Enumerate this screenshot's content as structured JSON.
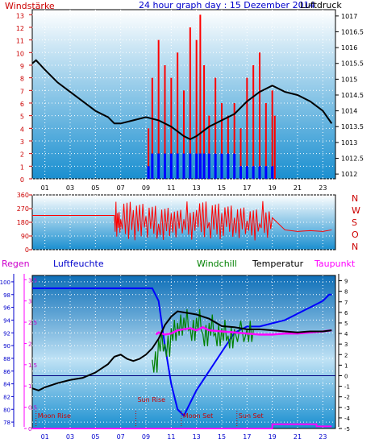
{
  "top": {
    "left_label": "Windstärke",
    "title": "24 hour graph day : 15 Dezember 2014",
    "right_label": "Luftdruck",
    "left_ticks": [
      "0",
      "1",
      "2",
      "3",
      "4",
      "5",
      "6",
      "7",
      "8",
      "9",
      "10",
      "11",
      "12",
      "13"
    ],
    "right_ticks": [
      "1012",
      "1012.5",
      "1013",
      "1013.5",
      "1014",
      "1014.5",
      "1015",
      "1015.5",
      "1016",
      "1016.5",
      "1017"
    ]
  },
  "x_ticks": [
    "01",
    "03",
    "05",
    "07",
    "09",
    "11",
    "13",
    "15",
    "17",
    "19",
    "21",
    "23"
  ],
  "direction": {
    "left_ticks": [
      "360",
      "270",
      "180",
      "90",
      "0"
    ],
    "right_letters": [
      "N",
      "W",
      "S",
      "O",
      "N"
    ]
  },
  "bottom": {
    "labels": {
      "rain": "Regen",
      "humidity": "Luftfeuchte",
      "windchill": "Windchill",
      "temperature": "Temperatur",
      "dewpoint": "Taupunkt"
    },
    "humidity_ticks": [
      "78",
      "80",
      "82",
      "84",
      "86",
      "88",
      "90",
      "92",
      "94",
      "96",
      "98",
      "100"
    ],
    "rain_ticks": [
      "0",
      "0.5",
      "1",
      "1.5",
      "2",
      "2.5",
      "3",
      "3.5"
    ],
    "temp_ticks": [
      "-5",
      "-4",
      "-3",
      "-2",
      "-1",
      "0",
      "1",
      "2",
      "3",
      "4",
      "5",
      "6",
      "7",
      "8",
      "9"
    ],
    "events": [
      {
        "label": "Moon Rise",
        "hour": 0.3
      },
      {
        "label": "Sun Rise",
        "hour": 8.2
      },
      {
        "label": "Moon Set",
        "hour": 11.8
      },
      {
        "label": "Sun Set",
        "hour": 16.2
      }
    ]
  },
  "colors": {
    "wind_axis": "#cc0000",
    "pressure": "#000000",
    "wind_gust": "#ff0000",
    "wind_avg": "#0000ff",
    "direction": "#ff0000",
    "humidity": "#0000ff",
    "rain": "#ff00ff",
    "temperature": "#000000",
    "windchill": "#008000",
    "dewpoint": "#ff00ff",
    "bg_top": "#ffffff",
    "bg_bottom": "#1a8fd0"
  },
  "chart_data": [
    {
      "type": "line",
      "title": "24 hour graph day : 15 Dezember 2014",
      "ylabel": "Windstärke",
      "y2label": "Luftdruck",
      "xlim": [
        0,
        24
      ],
      "ylim": [
        0,
        13
      ],
      "y2lim": [
        1012,
        1017
      ],
      "series": [
        {
          "name": "Luftdruck",
          "axis": "right",
          "x": [
            0,
            0.3,
            1,
            2,
            3,
            4,
            5,
            6,
            6.5,
            7,
            8,
            9,
            10,
            11,
            12,
            12.5,
            13,
            14,
            15,
            16,
            17,
            18,
            19,
            19.5,
            20,
            21,
            22,
            23,
            23.7
          ],
          "values": [
            1015.5,
            1015.6,
            1015.3,
            1014.9,
            1014.6,
            1014.3,
            1014.0,
            1013.8,
            1013.6,
            1013.6,
            1013.7,
            1013.8,
            1013.7,
            1013.5,
            1013.2,
            1013.1,
            1013.2,
            1013.5,
            1013.7,
            1013.9,
            1014.3,
            1014.6,
            1014.8,
            1014.7,
            1014.6,
            1014.5,
            1014.3,
            1014.0,
            1013.6
          ]
        },
        {
          "name": "Windböen",
          "axis": "left",
          "x": [
            9.2,
            9.5,
            10,
            10.5,
            11,
            11.5,
            12,
            12.5,
            13,
            13.3,
            13.6,
            14,
            14.5,
            15,
            15.5,
            16,
            16.5,
            17,
            17.5,
            18,
            18.5,
            19,
            19.2
          ],
          "values": [
            4,
            8,
            11,
            9,
            8,
            10,
            7,
            12,
            11,
            13,
            9,
            5,
            8,
            6,
            5,
            6,
            4,
            8,
            9,
            10,
            6,
            7,
            5
          ]
        },
        {
          "name": "Windmittel",
          "axis": "left",
          "x": [
            9.2,
            9.5,
            10,
            10.5,
            11,
            11.5,
            12,
            12.5,
            13,
            13.3,
            13.6,
            14,
            14.5,
            15,
            15.5,
            16,
            16.5,
            17,
            17.5,
            18,
            18.5,
            19,
            19.2
          ],
          "values": [
            1,
            2,
            2,
            2,
            2,
            2,
            2,
            2,
            2,
            2,
            2,
            2,
            2,
            2,
            2,
            2,
            1,
            1,
            1,
            1,
            1,
            1,
            0
          ]
        }
      ]
    },
    {
      "type": "line",
      "ylabel": "Windrichtung",
      "xlim": [
        0,
        24
      ],
      "ylim": [
        0,
        360
      ],
      "series": [
        {
          "name": "Windrichtung",
          "x": [
            0,
            1,
            2,
            3,
            4,
            5,
            6,
            6.5,
            7,
            8,
            9,
            10,
            11,
            12,
            13,
            14,
            15,
            16,
            17,
            18,
            19,
            20,
            21,
            22,
            23,
            23.7
          ],
          "values": [
            225,
            225,
            225,
            225,
            225,
            225,
            225,
            225,
            200,
            260,
            220,
            170,
            240,
            200,
            260,
            180,
            240,
            210,
            190,
            170,
            210,
            130,
            120,
            125,
            120,
            130
          ]
        }
      ]
    },
    {
      "type": "line",
      "ylabel": "Luftfeuchte",
      "xlim": [
        0,
        24
      ],
      "ylim": [
        77,
        101
      ],
      "series": [
        {
          "name": "Luftfeuchte",
          "axis": "humidity",
          "x": [
            0,
            9.5,
            10,
            10.5,
            11,
            11.5,
            12,
            12.5,
            13,
            14,
            15,
            16,
            17,
            18,
            19,
            20,
            21,
            22,
            22.5,
            23,
            23.5,
            23.7
          ],
          "values": [
            99,
            99,
            97,
            90,
            84,
            80,
            79,
            81,
            83,
            86,
            89,
            92,
            93,
            93,
            93.5,
            94,
            95,
            96,
            96.5,
            97,
            98,
            98
          ]
        },
        {
          "name": "Temperatur",
          "axis": "temp",
          "x": [
            0,
            0.5,
            1,
            2,
            3,
            4,
            5,
            6,
            6.5,
            7,
            7.5,
            8,
            8.5,
            9,
            9.5,
            10,
            10.5,
            11,
            11.5,
            12,
            12.5,
            13,
            14,
            15,
            16,
            17,
            18,
            19,
            20,
            21,
            22,
            23,
            23.7
          ],
          "values": [
            -1.2,
            -1.4,
            -1.1,
            -0.7,
            -0.4,
            -0.2,
            0.3,
            1.1,
            1.8,
            2.0,
            1.6,
            1.4,
            1.6,
            2.0,
            2.6,
            3.5,
            4.8,
            5.6,
            6.1,
            6.0,
            5.9,
            5.8,
            5.4,
            4.7,
            4.6,
            4.4,
            4.4,
            4.3,
            4.2,
            4.1,
            4.2,
            4.2,
            4.3
          ]
        },
        {
          "name": "Windchill",
          "axis": "temp",
          "x": [
            9.5,
            10,
            10.5,
            11,
            11.5,
            12,
            12.5,
            13,
            13.5,
            14,
            14.5,
            15,
            15.5,
            16,
            17,
            17.5
          ],
          "values": [
            1.5,
            3.5,
            3.0,
            4.5,
            5.0,
            5.5,
            4.5,
            5.5,
            4.0,
            5.0,
            4.0,
            4.5,
            3.8,
            4.4,
            4.4,
            4.3
          ]
        },
        {
          "name": "Taupunkt",
          "axis": "temp",
          "x": [
            9.8,
            10,
            10.5,
            11,
            11.5,
            12,
            12.5,
            13,
            13.5,
            14,
            15,
            16,
            17,
            18,
            19,
            20,
            21,
            22,
            23,
            23.7
          ],
          "values": [
            3.9,
            4.1,
            3.9,
            4.0,
            4.3,
            4.4,
            4.5,
            4.3,
            4.6,
            4.3,
            4.2,
            4.1,
            4.0,
            3.9,
            3.9,
            4.0,
            4.0,
            4.1,
            4.2,
            4.3
          ]
        },
        {
          "name": "Regen",
          "axis": "rain",
          "x": [
            0,
            19,
            19,
            22.5,
            22.5,
            23.7
          ],
          "values": [
            0,
            0,
            0.1,
            0.1,
            0.05,
            0.05
          ]
        }
      ],
      "humidity_lim": [
        77,
        101
      ],
      "rain_lim": [
        0,
        3.6
      ],
      "temp_lim": [
        -5,
        9.5
      ]
    }
  ]
}
